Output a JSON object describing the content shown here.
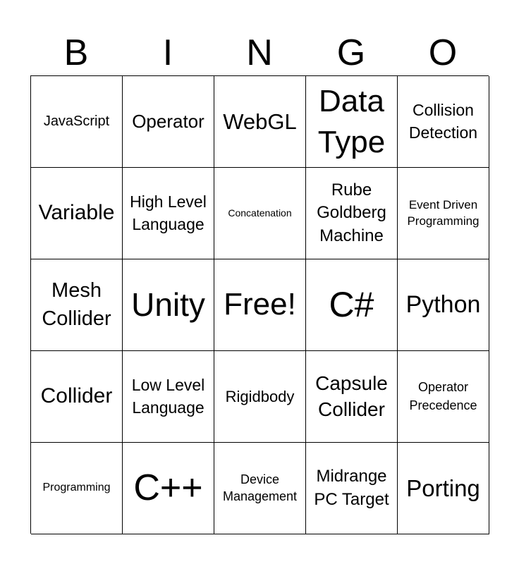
{
  "header": [
    "B",
    "I",
    "N",
    "G",
    "O"
  ],
  "cells": [
    "JavaScript",
    "Operator",
    "WebGL",
    "Data Type",
    "Collision Detection",
    "Variable",
    "High Level Language",
    "Concatenation",
    "Rube Goldberg Machine",
    "Event Driven Programming",
    "Mesh Collider",
    "Unity",
    "Free!",
    "C#",
    "Python",
    "Collider",
    "Low Level Language",
    "Rigidbody",
    "Capsule Collider",
    "Operator Precedence",
    "Programming",
    "C++",
    "Device Management",
    "Midrange PC Target",
    "Porting"
  ]
}
